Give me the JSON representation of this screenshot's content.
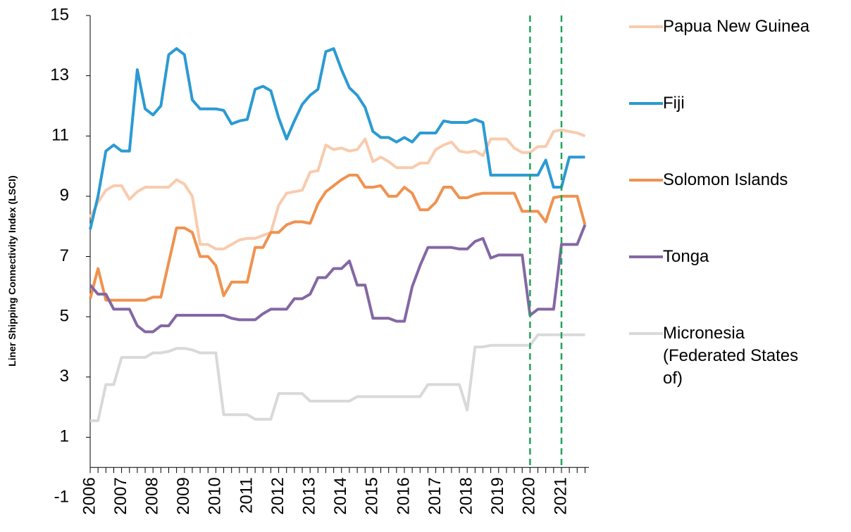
{
  "chart_data": {
    "type": "line",
    "y_label": "Liner Shipping Connectivity Index (LSCI)",
    "categories": [
      "2006",
      null,
      null,
      null,
      "2007",
      null,
      null,
      null,
      "2008",
      null,
      null,
      null,
      "2009",
      null,
      null,
      null,
      "2010",
      null,
      null,
      null,
      "2011",
      null,
      null,
      null,
      "2012",
      null,
      null,
      null,
      "2013",
      null,
      null,
      null,
      "2014",
      null,
      null,
      null,
      "2015",
      null,
      null,
      null,
      "2016",
      null,
      null,
      null,
      "2017",
      null,
      null,
      null,
      "2018",
      null,
      null,
      null,
      "2019",
      null,
      null,
      null,
      "2020",
      null,
      null,
      null,
      "2021",
      null,
      null,
      null
    ],
    "series": [
      {
        "name": "Papua New Guinea",
        "color": "#f8cbad",
        "values": [
          8.3,
          8.8,
          9.2,
          9.35,
          9.35,
          8.9,
          9.15,
          9.3,
          9.3,
          9.3,
          9.3,
          9.55,
          9.4,
          9.0,
          7.4,
          7.4,
          7.25,
          7.25,
          7.4,
          7.55,
          7.6,
          7.6,
          7.7,
          7.8,
          8.7,
          9.1,
          9.15,
          9.2,
          9.8,
          9.85,
          10.7,
          10.55,
          10.6,
          10.5,
          10.55,
          10.9,
          10.15,
          10.3,
          10.15,
          9.95,
          9.95,
          9.95,
          10.1,
          10.1,
          10.55,
          10.7,
          10.8,
          10.5,
          10.45,
          10.5,
          10.35,
          10.9,
          10.9,
          10.9,
          10.6,
          10.45,
          10.45,
          10.65,
          10.65,
          11.15,
          11.2,
          11.15,
          11.1,
          11.0
        ]
      },
      {
        "name": "Fiji",
        "color": "#2b9ad3",
        "values": [
          7.9,
          9.0,
          10.5,
          10.7,
          10.5,
          10.5,
          13.2,
          11.9,
          11.7,
          12.0,
          13.7,
          13.9,
          13.7,
          12.2,
          11.9,
          11.9,
          11.9,
          11.85,
          11.4,
          11.5,
          11.55,
          12.55,
          12.65,
          12.5,
          11.6,
          10.9,
          11.5,
          12.05,
          12.35,
          12.55,
          13.8,
          13.9,
          13.2,
          12.6,
          12.35,
          11.95,
          11.15,
          10.95,
          10.95,
          10.8,
          10.95,
          10.8,
          11.1,
          11.1,
          11.1,
          11.5,
          11.45,
          11.45,
          11.45,
          11.55,
          11.45,
          9.7,
          9.7,
          9.7,
          9.7,
          9.7,
          9.7,
          9.7,
          10.2,
          9.3,
          9.3,
          10.3,
          10.3,
          10.3
        ]
      },
      {
        "name": "Solomon Islands",
        "color": "#f0924f",
        "values": [
          5.6,
          6.6,
          5.55,
          5.55,
          5.55,
          5.55,
          5.55,
          5.55,
          5.65,
          5.65,
          6.8,
          7.95,
          7.95,
          7.8,
          7.0,
          7.0,
          6.7,
          5.7,
          6.15,
          6.15,
          6.15,
          7.3,
          7.3,
          7.8,
          7.8,
          8.05,
          8.15,
          8.15,
          8.1,
          8.75,
          9.15,
          9.35,
          9.55,
          9.7,
          9.7,
          9.3,
          9.3,
          9.35,
          9.0,
          9.0,
          9.3,
          9.1,
          8.55,
          8.55,
          8.8,
          9.3,
          9.3,
          8.95,
          8.95,
          9.05,
          9.1,
          9.1,
          9.1,
          9.1,
          9.1,
          8.5,
          8.5,
          8.5,
          8.15,
          8.95,
          9.0,
          9.0,
          9.0,
          8.05
        ]
      },
      {
        "name": "Tonga",
        "color": "#8467a3",
        "values": [
          6.05,
          5.75,
          5.75,
          5.25,
          5.25,
          5.25,
          4.7,
          4.5,
          4.5,
          4.7,
          4.7,
          5.05,
          5.05,
          5.05,
          5.05,
          5.05,
          5.05,
          5.05,
          4.95,
          4.9,
          4.9,
          4.9,
          5.1,
          5.25,
          5.25,
          5.25,
          5.6,
          5.6,
          5.75,
          6.3,
          6.3,
          6.6,
          6.6,
          6.85,
          6.05,
          6.05,
          4.95,
          4.95,
          4.95,
          4.85,
          4.85,
          6.0,
          6.7,
          7.3,
          7.3,
          7.3,
          7.3,
          7.25,
          7.25,
          7.5,
          7.6,
          6.95,
          7.05,
          7.05,
          7.05,
          7.05,
          5.05,
          5.25,
          5.25,
          5.25,
          7.4,
          7.4,
          7.4,
          8.05
        ]
      },
      {
        "name": "Micronesia (Federated States of)",
        "color": "#d9d9d9",
        "values": [
          1.55,
          1.55,
          2.75,
          2.75,
          3.65,
          3.65,
          3.65,
          3.65,
          3.8,
          3.8,
          3.85,
          3.95,
          3.95,
          3.9,
          3.8,
          3.8,
          3.8,
          1.75,
          1.75,
          1.75,
          1.75,
          1.6,
          1.6,
          1.6,
          2.45,
          2.45,
          2.45,
          2.45,
          2.2,
          2.2,
          2.2,
          2.2,
          2.2,
          2.2,
          2.35,
          2.35,
          2.35,
          2.35,
          2.35,
          2.35,
          2.35,
          2.35,
          2.35,
          2.75,
          2.75,
          2.75,
          2.75,
          2.75,
          1.9,
          4.0,
          4.0,
          4.05,
          4.05,
          4.05,
          4.05,
          4.05,
          4.05,
          4.4,
          4.4,
          4.4,
          4.4,
          4.4,
          4.4,
          4.4
        ]
      }
    ],
    "ylim": [
      -1,
      15
    ],
    "yticks": [
      -1,
      1,
      3,
      5,
      7,
      9,
      11,
      13,
      15
    ],
    "reference_lines": [
      "2020",
      "2021"
    ],
    "reference_color": "#1ea35a",
    "legend": "right"
  }
}
